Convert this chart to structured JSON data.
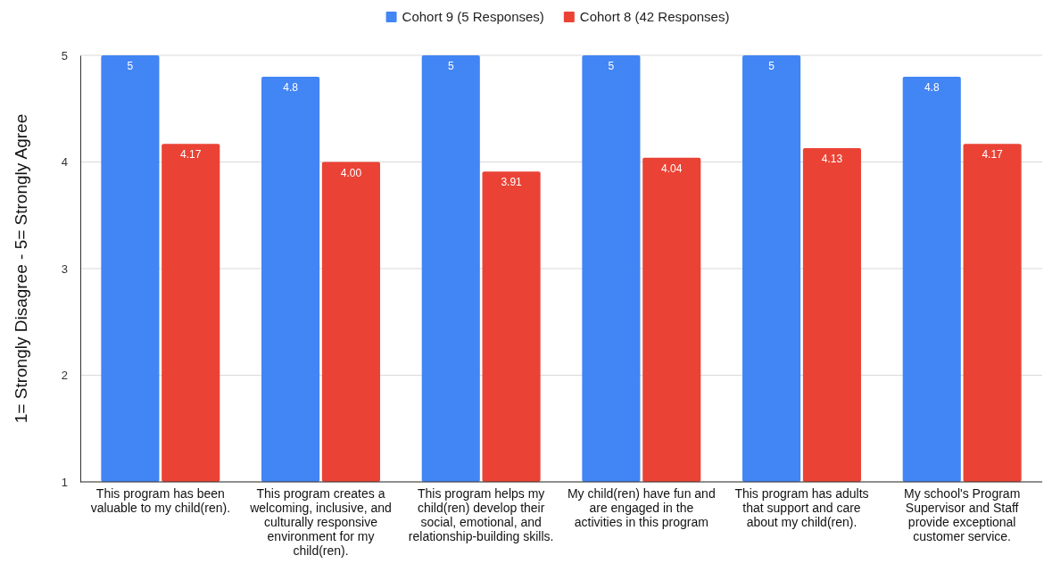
{
  "chart_data": {
    "type": "bar",
    "ylabel": "1= Strongly Disagree - 5= Strongly Agree",
    "categories": [
      "This program has been valuable to my child(ren).",
      "This program creates a welcoming, inclusive, and culturally responsive environment for my child(ren).",
      "This program helps my child(ren) develop their social, emotional, and relationship-building skills.",
      "My child(ren) have fun and are engaged in the activities in this program",
      "This program has adults that support and care about my child(ren).",
      "My school's Program Supervisor and Staff provide exceptional customer service."
    ],
    "series": [
      {
        "name": "Cohort 9 (5 Responses)",
        "color": "#4285f4",
        "values": [
          5,
          4.8,
          5,
          5,
          5,
          4.8
        ],
        "value_labels": [
          "5",
          "4.8",
          "5",
          "5",
          "5",
          "4.8"
        ]
      },
      {
        "name": "Cohort 8 (42 Responses)",
        "color": "#ea4335",
        "values": [
          4.17,
          4.0,
          3.91,
          4.04,
          4.13,
          4.17
        ],
        "value_labels": [
          "4.17",
          "4.00",
          "3.91",
          "4.04",
          "4.13",
          "4.17"
        ]
      }
    ],
    "ylim": [
      1,
      5
    ],
    "yticks": [
      1,
      2,
      3,
      4,
      5
    ],
    "grid": "y",
    "legend": "top"
  }
}
